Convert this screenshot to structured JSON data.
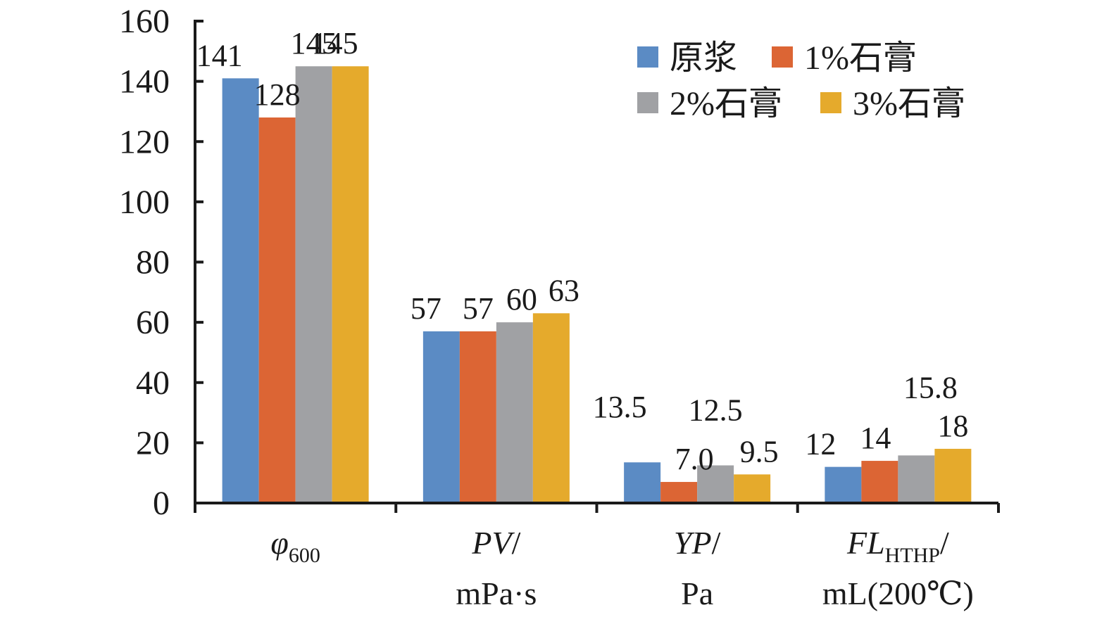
{
  "chart_data": {
    "type": "bar",
    "title": "",
    "xlabel": "",
    "ylabel": "",
    "ylim": [
      0,
      160
    ],
    "y_ticks": [
      0,
      20,
      40,
      60,
      80,
      100,
      120,
      140,
      160
    ],
    "grid": false,
    "legend_position": "top-right",
    "categories": [
      {
        "id": "phi600",
        "lines": [
          {
            "main": "φ",
            "sub": "600",
            "suffix": "",
            "italic": true
          }
        ]
      },
      {
        "id": "pv",
        "lines": [
          {
            "main": "PV",
            "sub": "",
            "suffix": "/",
            "italic": true
          },
          {
            "main": "mPa·s",
            "sub": "",
            "suffix": "",
            "italic": false
          }
        ]
      },
      {
        "id": "yp",
        "lines": [
          {
            "main": "YP",
            "sub": "",
            "suffix": "/",
            "italic": true
          },
          {
            "main": "Pa",
            "sub": "",
            "suffix": "",
            "italic": false
          }
        ]
      },
      {
        "id": "fl",
        "lines": [
          {
            "main": "FL",
            "sub": "HTHP",
            "suffix": "/",
            "italic": true
          },
          {
            "main": "mL(200℃)",
            "sub": "",
            "suffix": "",
            "italic": false
          }
        ]
      }
    ],
    "series": [
      {
        "name": "原浆",
        "color": "#5b8bc4",
        "values": [
          141,
          57,
          13.5,
          12
        ],
        "labels": [
          "141",
          "57",
          "13.5",
          "12"
        ]
      },
      {
        "name": "1%石膏",
        "color": "#dc6534",
        "values": [
          128,
          57,
          7.0,
          14
        ],
        "labels": [
          "128",
          "57",
          "7.0",
          "14"
        ]
      },
      {
        "name": "2%石膏",
        "color": "#a0a1a4",
        "values": [
          145,
          60,
          12.5,
          15.8
        ],
        "labels": [
          "145",
          "60",
          "12.5",
          "15.8"
        ]
      },
      {
        "name": "3%石膏",
        "color": "#e5aa2c",
        "values": [
          145,
          63,
          9.5,
          18
        ],
        "labels": [
          "145",
          "63",
          "9.5",
          "18"
        ]
      }
    ]
  }
}
